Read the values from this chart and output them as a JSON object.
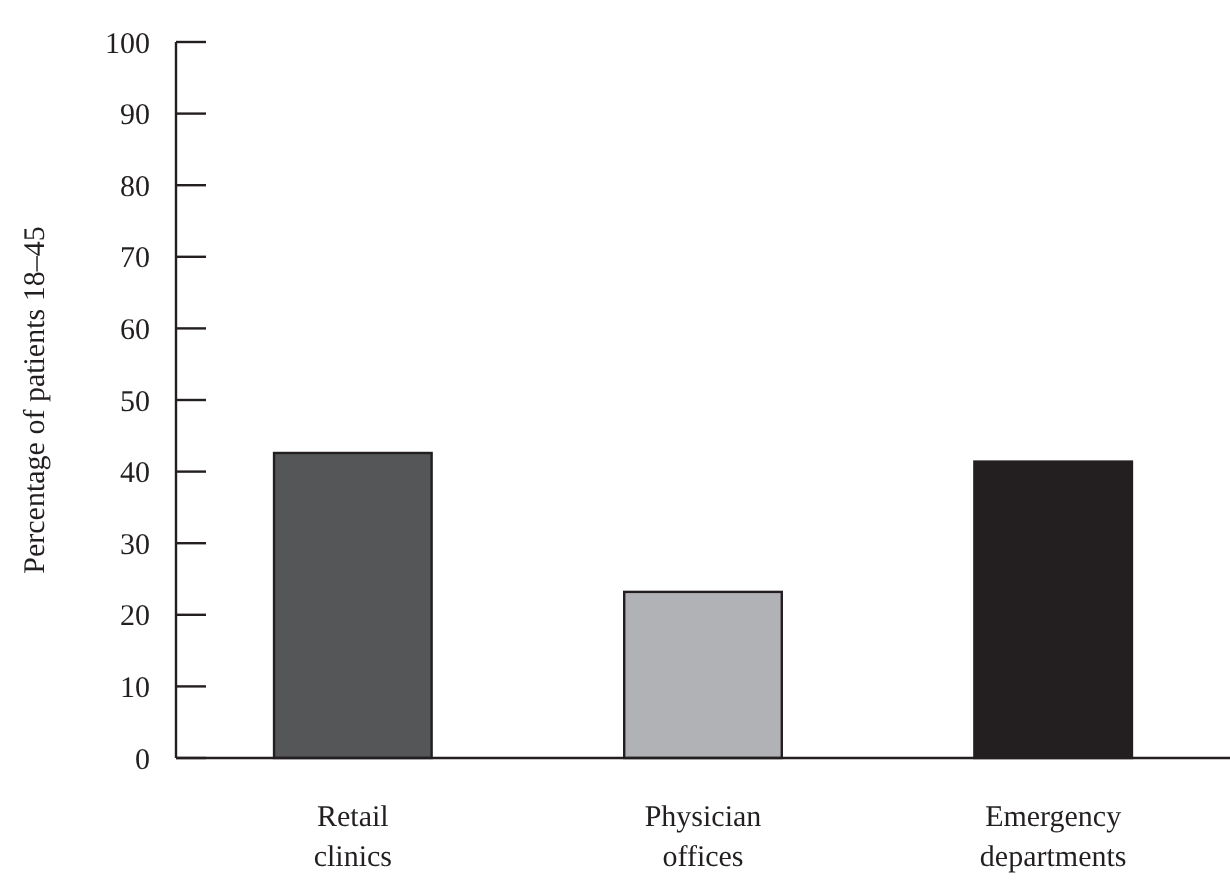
{
  "chart_data": {
    "type": "bar",
    "ylabel": "Percentage of patients 18–45",
    "categories": [
      "Retail clinics",
      "Physician offices",
      "Emergency departments"
    ],
    "values": [
      42.6,
      23.2,
      41.4
    ],
    "colors": [
      "#555658",
      "#b1b2b5",
      "#231f20"
    ],
    "ylim": [
      0,
      100
    ],
    "yticks": [
      0,
      10,
      20,
      30,
      40,
      50,
      60,
      70,
      80,
      90,
      100
    ],
    "grid": false
  }
}
